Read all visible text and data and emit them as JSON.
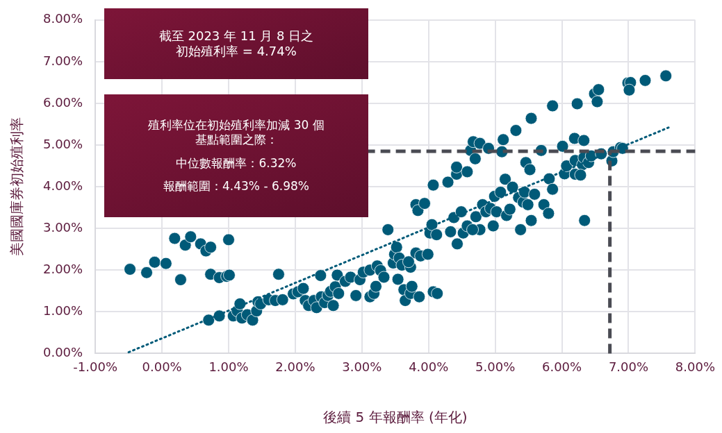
{
  "chart_data": {
    "type": "scatter",
    "xlabel": "後續 5 年報酬率 (年化)",
    "ylabel": "美國國庫券初始殖利率",
    "annotations": [
      "截至 2023 年 11 月 8 日之初始殖利率 = 4.74%",
      "殖利率位在初始殖利率加減 30 個基點範圍之際：",
      "中位數報酬率：6.32%",
      "報酬範圍：4.43% - 6.98%"
    ],
    "xlim": [
      -1,
      8
    ],
    "ylim": [
      0,
      8
    ],
    "xticks": [
      {
        "value": -1,
        "label": "-1.00%"
      },
      {
        "value": 0,
        "label": "0.00%"
      },
      {
        "value": 1,
        "label": "1.00%"
      },
      {
        "value": 2,
        "label": "2.00%"
      },
      {
        "value": 3,
        "label": "3.00%"
      },
      {
        "value": 4,
        "label": "4.00%"
      },
      {
        "value": 5,
        "label": "5.00%"
      },
      {
        "value": 6,
        "label": "6.00%"
      },
      {
        "value": 7,
        "label": "7.00%"
      },
      {
        "value": 8,
        "label": "8.00%"
      }
    ],
    "yticks": [
      {
        "value": 0,
        "label": "0.00%"
      },
      {
        "value": 1,
        "label": "1.00%"
      },
      {
        "value": 2,
        "label": "2.00%"
      },
      {
        "value": 3,
        "label": "3.00%"
      },
      {
        "value": 4,
        "label": "4.00%"
      },
      {
        "value": 5,
        "label": "5.00%"
      },
      {
        "value": 6,
        "label": "6.00%"
      },
      {
        "value": 7,
        "label": "7.00%"
      },
      {
        "value": 8,
        "label": "8.00%"
      }
    ],
    "grid": true,
    "legend": false,
    "marker": "circle",
    "ref_lines": [
      {
        "axis": "y",
        "value": 4.85,
        "color": "#4a4b53",
        "line_style": "dashed"
      },
      {
        "axis": "x",
        "value": 6.72,
        "color": "#4a4b53",
        "line_style": "dashed"
      }
    ],
    "series": [
      {
        "color": "#005a78",
        "x": [
          -0.48,
          -0.23,
          -0.11,
          0.06,
          0.19,
          0.28,
          0.35,
          0.43,
          0.58,
          0.66,
          0.73,
          1.0,
          0.73,
          0.86,
          0.97,
          1.01,
          1.75,
          0.7,
          0.86,
          1.07,
          1.13,
          1.17,
          1.2,
          1.28,
          1.36,
          1.42,
          1.44,
          1.48,
          1.6,
          1.7,
          1.81,
          1.97,
          2.04,
          2.12,
          2.15,
          2.2,
          2.28,
          2.32,
          2.39,
          2.44,
          2.49,
          2.53,
          2.57,
          2.6,
          2.65,
          2.38,
          2.63,
          2.75,
          2.83,
          2.91,
          2.97,
          3.02,
          3.12,
          3.18,
          3.21,
          3.12,
          3.23,
          3.28,
          3.33,
          3.39,
          3.47,
          3.49,
          3.52,
          3.56,
          3.6,
          3.54,
          3.63,
          3.65,
          3.73,
          3.81,
          3.84,
          3.81,
          3.88,
          3.94,
          3.73,
          3.7,
          3.75,
          3.86,
          4.02,
          4.05,
          4.12,
          4.07,
          4.07,
          4.13,
          3.99,
          4.29,
          4.42,
          4.42,
          4.33,
          4.38,
          4.43,
          4.49,
          4.52,
          4.58,
          4.58,
          4.63,
          4.67,
          4.77,
          4.7,
          4.71,
          4.77,
          4.66,
          4.81,
          4.86,
          4.9,
          4.93,
          4.97,
          4.99,
          5.02,
          5.08,
          5.1,
          5.12,
          5.15,
          5.17,
          5.22,
          5.26,
          5.31,
          5.35,
          5.38,
          5.42,
          5.44,
          5.46,
          5.49,
          5.52,
          5.54,
          5.54,
          5.59,
          5.69,
          5.73,
          5.8,
          5.81,
          5.86,
          5.86,
          6.01,
          6.04,
          6.07,
          6.2,
          6.2,
          6.23,
          6.31,
          6.28,
          6.33,
          6.34,
          6.4,
          6.44,
          6.49,
          6.55,
          6.53,
          6.59,
          6.75,
          6.77,
          6.88,
          6.91,
          6.99,
          7.03,
          7.01,
          7.25,
          7.56,
          6.19,
          6.33
        ],
        "values": [
          2.02,
          1.94,
          2.19,
          2.16,
          2.76,
          1.77,
          2.6,
          2.8,
          2.63,
          2.46,
          2.55,
          2.73,
          1.9,
          1.82,
          1.85,
          1.88,
          1.9,
          0.8,
          0.9,
          0.9,
          1.02,
          1.19,
          0.85,
          0.93,
          0.8,
          1.02,
          1.24,
          1.19,
          1.29,
          1.27,
          1.29,
          1.43,
          1.48,
          1.56,
          1.27,
          1.15,
          1.27,
          1.1,
          1.36,
          1.22,
          1.39,
          1.49,
          1.15,
          1.6,
          1.44,
          1.87,
          1.88,
          1.73,
          1.83,
          1.39,
          1.77,
          1.95,
          1.36,
          1.44,
          1.61,
          2.0,
          2.1,
          1.99,
          1.83,
          2.97,
          2.17,
          2.38,
          2.55,
          2.29,
          2.12,
          1.78,
          1.53,
          1.27,
          1.44,
          3.57,
          3.43,
          2.41,
          2.34,
          3.6,
          2.07,
          2.2,
          1.61,
          1.36,
          2.89,
          3.09,
          2.85,
          4.04,
          1.48,
          1.44,
          2.38,
          4.11,
          4.3,
          4.47,
          2.92,
          3.26,
          2.63,
          3.4,
          2.89,
          3.06,
          4.36,
          4.87,
          5.08,
          5.04,
          4.67,
          3.28,
          2.97,
          2.97,
          3.57,
          3.4,
          4.92,
          3.48,
          3.06,
          3.77,
          3.4,
          3.87,
          4.84,
          5.13,
          4.18,
          3.31,
          3.46,
          3.99,
          5.35,
          3.74,
          2.97,
          3.63,
          3.87,
          4.58,
          3.57,
          4.41,
          3.19,
          5.64,
          3.82,
          4.87,
          3.57,
          3.36,
          4.19,
          3.94,
          5.94,
          4.97,
          4.31,
          4.5,
          4.3,
          4.63,
          5.99,
          4.53,
          4.28,
          4.7,
          3.19,
          4.58,
          4.74,
          6.23,
          6.33,
          6.04,
          4.79,
          4.62,
          4.84,
          4.94,
          4.92,
          6.49,
          6.5,
          6.32,
          6.55,
          6.66,
          5.16,
          5.11
        ]
      },
      {
        "type": "line",
        "color": "#005a78",
        "x": [
          -0.5,
          7.6
        ],
        "values": [
          0.03,
          5.42
        ],
        "line_style": "dotted",
        "marker": "none"
      }
    ]
  }
}
